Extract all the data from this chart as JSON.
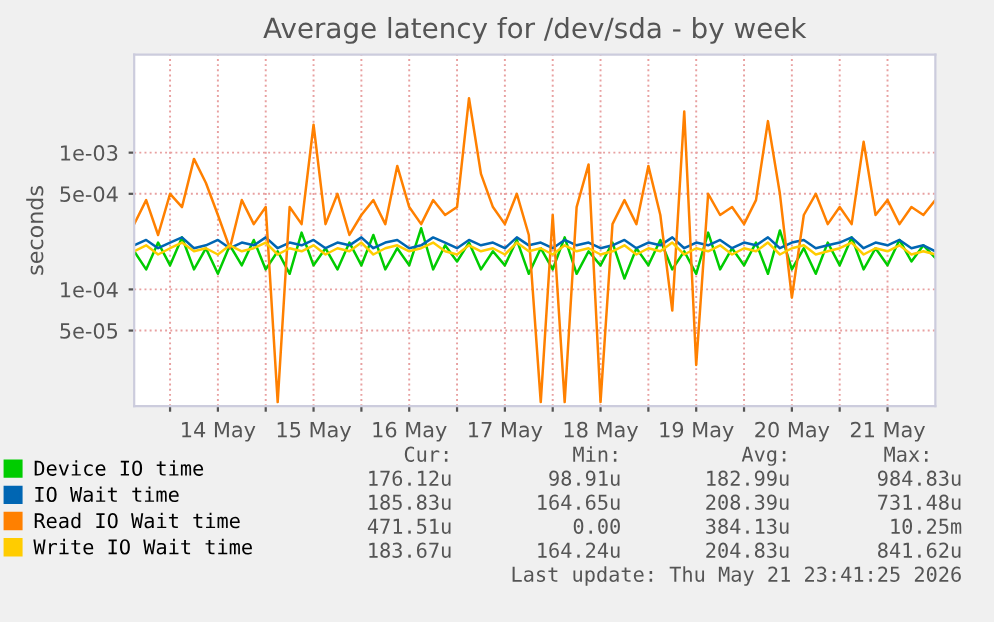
{
  "chart_data": {
    "type": "line",
    "title": "Average latency for /dev/sda - by week",
    "ylabel": "seconds",
    "log": "y",
    "grid": true,
    "legend": "bottom",
    "marker": "none",
    "line_style": "solid",
    "xlim": [
      "2026-05-13T15:00",
      "2026-05-22T00:00"
    ],
    "xticks": [
      {
        "value": "2026-05-14T00:00",
        "label": null
      },
      {
        "value": "2026-05-14T12:00",
        "label": "14 May"
      },
      {
        "value": "2026-05-15T00:00",
        "label": null
      },
      {
        "value": "2026-05-15T12:00",
        "label": "15 May"
      },
      {
        "value": "2026-05-16T00:00",
        "label": null
      },
      {
        "value": "2026-05-16T12:00",
        "label": "16 May"
      },
      {
        "value": "2026-05-17T00:00",
        "label": null
      },
      {
        "value": "2026-05-17T12:00",
        "label": "17 May"
      },
      {
        "value": "2026-05-18T00:00",
        "label": null
      },
      {
        "value": "2026-05-18T12:00",
        "label": "18 May"
      },
      {
        "value": "2026-05-19T00:00",
        "label": null
      },
      {
        "value": "2026-05-19T12:00",
        "label": "19 May"
      },
      {
        "value": "2026-05-20T00:00",
        "label": null
      },
      {
        "value": "2026-05-20T12:00",
        "label": "20 May"
      },
      {
        "value": "2026-05-21T00:00",
        "label": null
      },
      {
        "value": "2026-05-21T12:00",
        "label": "21 May"
      }
    ],
    "ylim": [
      1.4e-05,
      0.0052
    ],
    "yticks": [
      {
        "value": 5e-05,
        "label": "5e-05"
      },
      {
        "value": 0.0001,
        "label": "1e-04"
      },
      {
        "value": 0.0005,
        "label": "5e-04"
      },
      {
        "value": 0.001,
        "label": "1e-03"
      }
    ],
    "x": [
      "2026-05-13T15:00",
      "2026-05-13T18:00",
      "2026-05-13T21:00",
      "2026-05-14T00:00",
      "2026-05-14T03:00",
      "2026-05-14T06:00",
      "2026-05-14T09:00",
      "2026-05-14T12:00",
      "2026-05-14T15:00",
      "2026-05-14T18:00",
      "2026-05-14T21:00",
      "2026-05-15T00:00",
      "2026-05-15T03:00",
      "2026-05-15T06:00",
      "2026-05-15T09:00",
      "2026-05-15T12:00",
      "2026-05-15T15:00",
      "2026-05-15T18:00",
      "2026-05-15T21:00",
      "2026-05-16T00:00",
      "2026-05-16T03:00",
      "2026-05-16T06:00",
      "2026-05-16T09:00",
      "2026-05-16T12:00",
      "2026-05-16T15:00",
      "2026-05-16T18:00",
      "2026-05-16T21:00",
      "2026-05-17T00:00",
      "2026-05-17T03:00",
      "2026-05-17T06:00",
      "2026-05-17T09:00",
      "2026-05-17T12:00",
      "2026-05-17T15:00",
      "2026-05-17T18:00",
      "2026-05-17T21:00",
      "2026-05-18T00:00",
      "2026-05-18T03:00",
      "2026-05-18T06:00",
      "2026-05-18T09:00",
      "2026-05-18T12:00",
      "2026-05-18T15:00",
      "2026-05-18T18:00",
      "2026-05-18T21:00",
      "2026-05-19T00:00",
      "2026-05-19T03:00",
      "2026-05-19T06:00",
      "2026-05-19T09:00",
      "2026-05-19T12:00",
      "2026-05-19T15:00",
      "2026-05-19T18:00",
      "2026-05-19T21:00",
      "2026-05-20T00:00",
      "2026-05-20T03:00",
      "2026-05-20T06:00",
      "2026-05-20T09:00",
      "2026-05-20T12:00",
      "2026-05-20T15:00",
      "2026-05-20T18:00",
      "2026-05-20T21:00",
      "2026-05-21T00:00",
      "2026-05-21T03:00",
      "2026-05-21T06:00",
      "2026-05-21T09:00",
      "2026-05-21T12:00",
      "2026-05-21T15:00",
      "2026-05-21T18:00",
      "2026-05-21T21:00",
      "2026-05-22T00:00"
    ],
    "series": [
      {
        "name": "Device IO time",
        "color": "#00cc00",
        "values": [
          0.00019,
          0.00014,
          0.00022,
          0.00015,
          0.00024,
          0.00014,
          0.0002,
          0.00013,
          0.00021,
          0.00015,
          0.00023,
          0.00014,
          0.00019,
          0.00013,
          0.00026,
          0.00015,
          0.0002,
          0.00014,
          0.00022,
          0.00015,
          0.00025,
          0.00014,
          0.0002,
          0.00015,
          0.00028,
          0.00014,
          0.00021,
          0.00016,
          0.00022,
          0.00014,
          0.00019,
          0.00015,
          0.00023,
          0.00013,
          0.0002,
          0.00014,
          0.00024,
          0.00013,
          0.00019,
          0.00015,
          0.00022,
          0.00012,
          0.0002,
          0.00015,
          0.00023,
          0.00014,
          0.00019,
          0.00013,
          0.00026,
          0.00014,
          0.0002,
          0.00015,
          0.00022,
          0.00013,
          0.00027,
          0.00014,
          0.0002,
          0.00013,
          0.00022,
          0.00015,
          0.00024,
          0.00014,
          0.0002,
          0.00015,
          0.00023,
          0.00016,
          0.00021,
          0.00017
        ]
      },
      {
        "name": "IO Wait time",
        "color": "#0066b3",
        "values": [
          0.00021,
          0.00023,
          0.0002,
          0.00022,
          0.00024,
          0.0002,
          0.00021,
          0.00023,
          0.0002,
          0.00022,
          0.00021,
          0.00024,
          0.0002,
          0.00022,
          0.00021,
          0.00023,
          0.0002,
          0.00022,
          0.00021,
          0.00024,
          0.0002,
          0.00022,
          0.00023,
          0.0002,
          0.00021,
          0.00024,
          0.00022,
          0.0002,
          0.00023,
          0.00021,
          0.00022,
          0.0002,
          0.00024,
          0.00021,
          0.00022,
          0.0002,
          0.00023,
          0.00021,
          0.00022,
          0.0002,
          0.00021,
          0.00023,
          0.0002,
          0.00022,
          0.00021,
          0.00024,
          0.0002,
          0.00022,
          0.00021,
          0.00023,
          0.0002,
          0.00022,
          0.00021,
          0.00024,
          0.0002,
          0.00022,
          0.00023,
          0.0002,
          0.00021,
          0.00022,
          0.00024,
          0.0002,
          0.00022,
          0.00021,
          0.00023,
          0.0002,
          0.00021,
          0.00019
        ]
      },
      {
        "name": "Read IO Wait time",
        "color": "#ff8000",
        "values": [
          0.0003,
          0.00045,
          0.00025,
          0.0005,
          0.0004,
          0.0009,
          0.0006,
          0.00035,
          0.0002,
          0.00045,
          0.0003,
          0.0004,
          1.5e-05,
          0.0004,
          0.0003,
          0.0016,
          0.0003,
          0.0005,
          0.00025,
          0.00035,
          0.00045,
          0.0003,
          0.0008,
          0.0004,
          0.0003,
          0.00045,
          0.00035,
          0.0004,
          0.0025,
          0.0007,
          0.0004,
          0.0003,
          0.0005,
          0.00025,
          1.5e-05,
          0.00035,
          1.5e-05,
          0.0004,
          0.00082,
          1.5e-05,
          0.0003,
          0.00045,
          0.0003,
          0.0008,
          0.00035,
          7e-05,
          0.002,
          2.8e-05,
          0.0005,
          0.00035,
          0.0004,
          0.0003,
          0.00045,
          0.0017,
          0.0005,
          8.7e-05,
          0.00035,
          0.0005,
          0.0003,
          0.0004,
          0.0003,
          0.0012,
          0.00035,
          0.00045,
          0.0003,
          0.0004,
          0.00035,
          0.00045
        ]
      },
      {
        "name": "Write IO Wait time",
        "color": "#ffcc00",
        "values": [
          0.00019,
          0.00021,
          0.00018,
          0.0002,
          0.00022,
          0.00019,
          0.0002,
          0.00018,
          0.00021,
          0.00019,
          0.0002,
          0.00022,
          0.00018,
          0.0002,
          0.00019,
          0.00021,
          0.00018,
          0.0002,
          0.00019,
          0.00022,
          0.00018,
          0.0002,
          0.00021,
          0.00019,
          0.0002,
          0.00022,
          0.00019,
          0.00018,
          0.00021,
          0.00019,
          0.0002,
          0.00018,
          0.00022,
          0.00019,
          0.0002,
          0.00018,
          0.00021,
          0.00019,
          0.0002,
          0.00018,
          0.00019,
          0.00021,
          0.00018,
          0.0002,
          0.00019,
          0.00022,
          0.00018,
          0.0002,
          0.00019,
          0.00021,
          0.00018,
          0.0002,
          0.00019,
          0.00022,
          0.00018,
          0.0002,
          0.00021,
          0.00018,
          0.00019,
          0.0002,
          0.00022,
          0.00018,
          0.0002,
          0.00019,
          0.00021,
          0.00018,
          0.00019,
          0.00018
        ]
      }
    ],
    "annotations": [
      "Cur:",
      "Min:",
      "Avg:",
      "Max:",
      "176.12u",
      "98.91u",
      "182.99u",
      "984.83u",
      "185.83u",
      "164.65u",
      "208.39u",
      "731.48u",
      "471.51u",
      "0.00",
      "384.13u",
      "10.25m",
      "183.67u",
      "164.24u",
      "204.83u",
      "841.62u",
      "Last update: Thu May 21 23:41:25 2026"
    ]
  }
}
